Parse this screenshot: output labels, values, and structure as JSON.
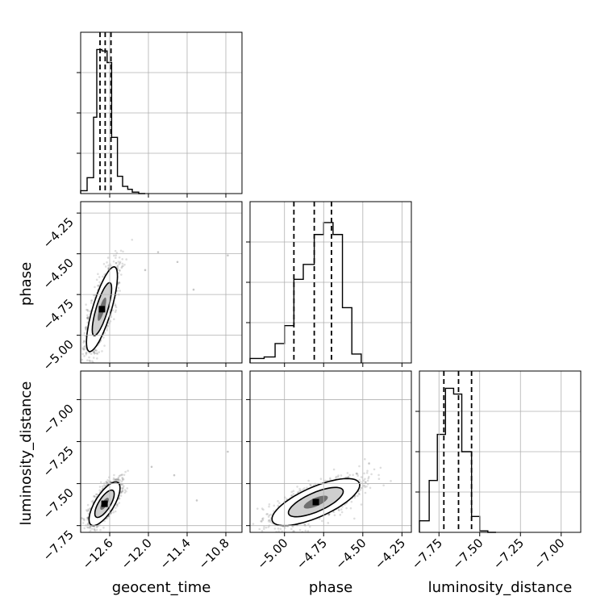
{
  "chart_data": {
    "type": "corner",
    "parameters": [
      {
        "label": "geocent_time",
        "quantiles": [
          -12.75,
          -12.67,
          -12.58
        ],
        "ticks": [
          "−12.6",
          "−12.0",
          "−11.4",
          "−10.8"
        ],
        "tick_values": [
          -12.6,
          -12.0,
          -11.4,
          -10.8
        ],
        "range": [
          -13.05,
          -10.55
        ],
        "hist_bins": [
          -13.05,
          -12.95,
          -12.85,
          -12.8,
          -12.72,
          -12.64,
          -12.57,
          -12.48,
          -12.4,
          -12.32,
          -12.25,
          -12.15,
          -12.05
        ],
        "hist_counts": [
          0.02,
          0.11,
          0.53,
          1.0,
          0.99,
          0.91,
          0.39,
          0.12,
          0.05,
          0.03,
          0.01,
          0.0
        ]
      },
      {
        "label": "phase",
        "quantiles": [
          -4.94,
          -4.81,
          -4.7
        ],
        "ticks": [
          "−5.00",
          "−4.75",
          "−4.50",
          "−4.25"
        ],
        "tick_values": [
          -5.0,
          -4.75,
          -4.5,
          -4.25
        ],
        "range": [
          -5.22,
          -4.19
        ],
        "hist_bins": [
          -5.22,
          -5.13,
          -5.06,
          -5.0,
          -4.94,
          -4.88,
          -4.81,
          -4.75,
          -4.69,
          -4.63,
          -4.57,
          -4.51
        ],
        "hist_counts": [
          0.03,
          0.04,
          0.13,
          0.25,
          0.56,
          0.66,
          0.86,
          0.94,
          0.86,
          0.37,
          0.06
        ],
        "ylim": [
          0,
          1.08
        ]
      },
      {
        "label": "luminosity_distance",
        "quantiles": [
          -7.72,
          -7.63,
          -7.55
        ],
        "ticks": [
          "−7.75",
          "−7.50",
          "−7.25",
          "−7.00"
        ],
        "tick_values": [
          -7.75,
          -7.5,
          -7.25,
          -7.0
        ],
        "range": [
          -7.87,
          -6.88
        ],
        "hist_bins": [
          -7.87,
          -7.81,
          -7.76,
          -7.71,
          -7.66,
          -7.61,
          -7.55,
          -7.5,
          -7.45,
          -7.4
        ],
        "hist_counts": [
          0.08,
          0.36,
          0.68,
          1.0,
          0.96,
          0.56,
          0.11,
          0.01,
          0.0
        ]
      }
    ],
    "pairs": [
      {
        "x": "geocent_time",
        "y": "phase",
        "yticks": [
          "−5.00",
          "−4.75",
          "−4.50",
          "−4.25"
        ],
        "mean": [
          -12.72,
          -4.84
        ],
        "sd": [
          0.12,
          0.13
        ],
        "rho": 0.78,
        "ytick_values": [
          -5.0,
          -4.75,
          -4.5,
          -4.25
        ],
        "yrange": [
          -5.17,
          -4.18
        ],
        "outliers": [
          [
            -11.85,
            -4.49
          ],
          [
            -11.55,
            -4.55
          ],
          [
            -10.77,
            -4.51
          ],
          [
            -11.3,
            -4.72
          ],
          [
            -12.05,
            -4.6
          ]
        ]
      },
      {
        "x": "geocent_time",
        "y": "luminosity_distance",
        "yticks": [
          "−7.75",
          "−7.50",
          "−7.25",
          "−7.00"
        ],
        "mean": [
          -12.68,
          -7.62
        ],
        "sd": [
          0.12,
          0.065
        ],
        "rho": 0.72,
        "ytick_values": [
          -7.75,
          -7.5,
          -7.25,
          -7.0
        ],
        "yrange": [
          -7.79,
          -6.83
        ],
        "outliers": [
          [
            -10.77,
            -7.31
          ],
          [
            -11.6,
            -7.45
          ],
          [
            -11.25,
            -7.6
          ],
          [
            -11.95,
            -7.4
          ]
        ]
      },
      {
        "x": "phase",
        "y": "luminosity_distance",
        "mean": [
          -4.8,
          -7.61
        ],
        "sd": [
          0.14,
          0.07
        ],
        "rho": 0.72,
        "outliers": [
          [
            -4.46,
            -7.38
          ],
          [
            -4.54,
            -7.44
          ]
        ]
      }
    ],
    "axis_labels": {
      "x": [
        "geocent_time",
        "phase",
        "luminosity_distance"
      ],
      "y": [
        "phase",
        "luminosity_distance"
      ]
    },
    "grid": true,
    "legend": "none"
  }
}
